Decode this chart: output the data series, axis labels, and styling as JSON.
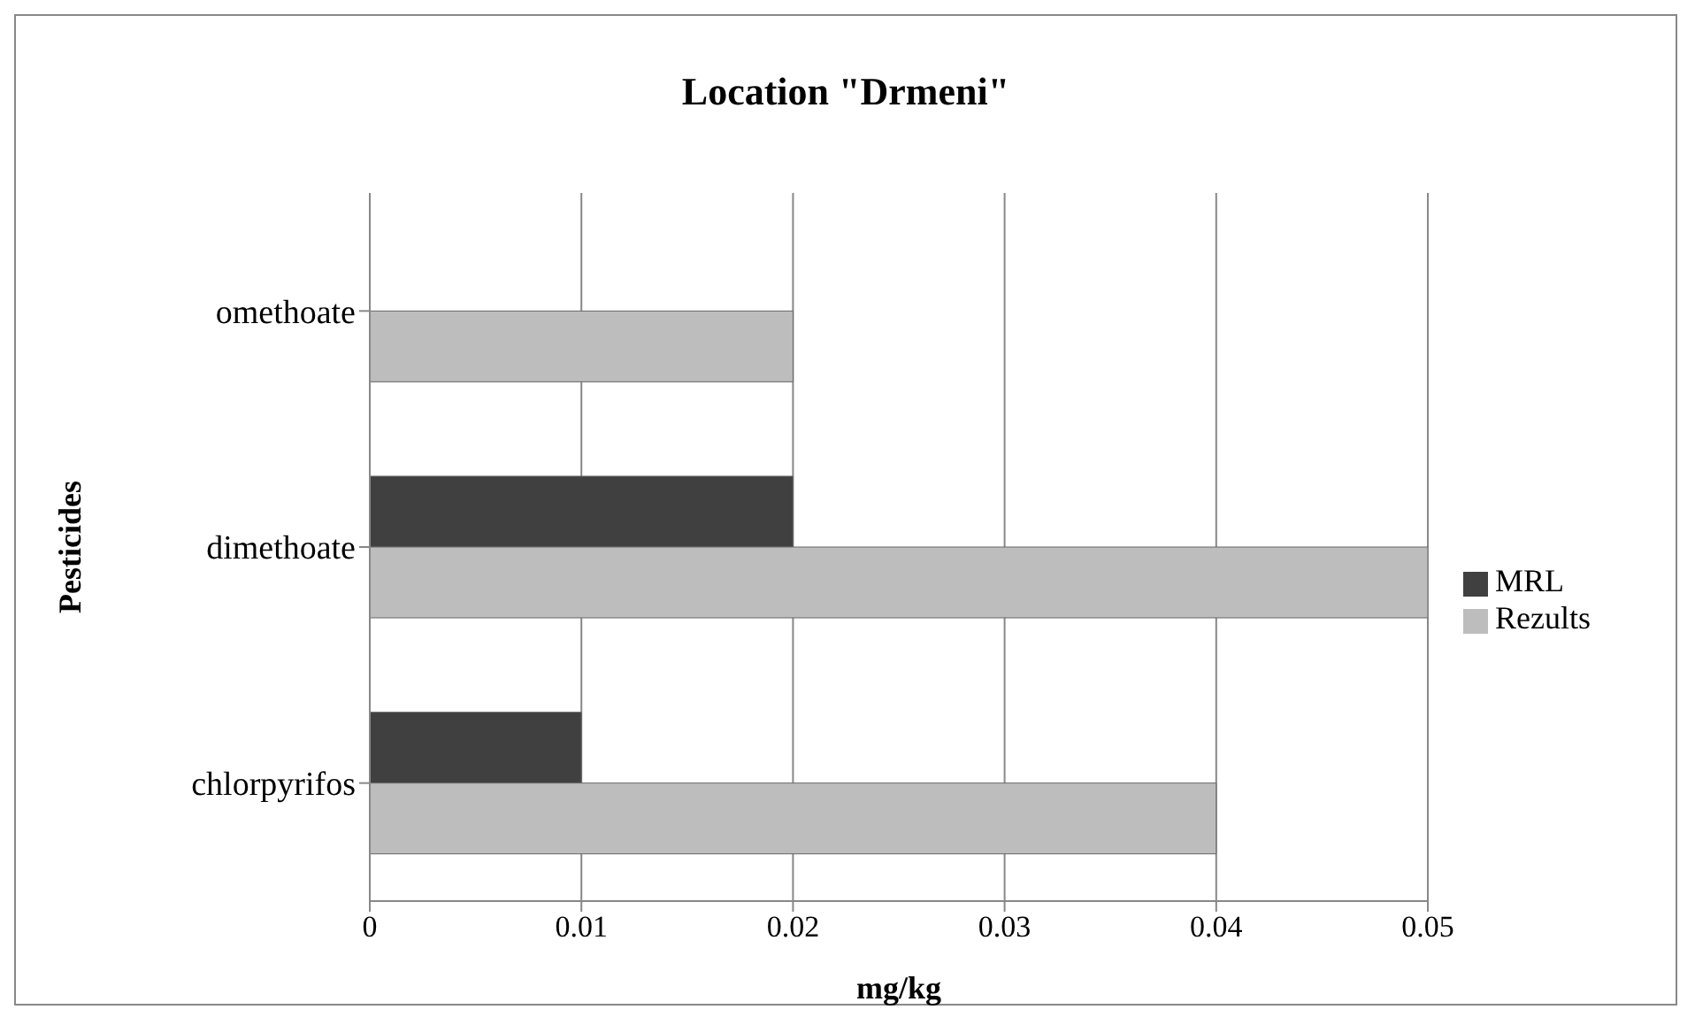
{
  "chart_data": {
    "type": "bar",
    "orientation": "horizontal",
    "title": "Location \"Drmeni\"",
    "xlabel": "mg/kg",
    "ylabel": "Pesticides",
    "categories": [
      "omethoate",
      "dimethoate",
      "chlorpyrifos"
    ],
    "series": [
      {
        "name": "MRL",
        "color": "#404040",
        "values": [
          null,
          0.02,
          0.01
        ]
      },
      {
        "name": "Rezults",
        "color": "#bdbdbd",
        "values": [
          0.02,
          0.05,
          0.04
        ]
      }
    ],
    "xlim": [
      0,
      0.05
    ],
    "xticks": [
      0,
      0.01,
      0.02,
      0.03,
      0.04,
      0.05
    ],
    "grid": "x",
    "legend": "right"
  }
}
